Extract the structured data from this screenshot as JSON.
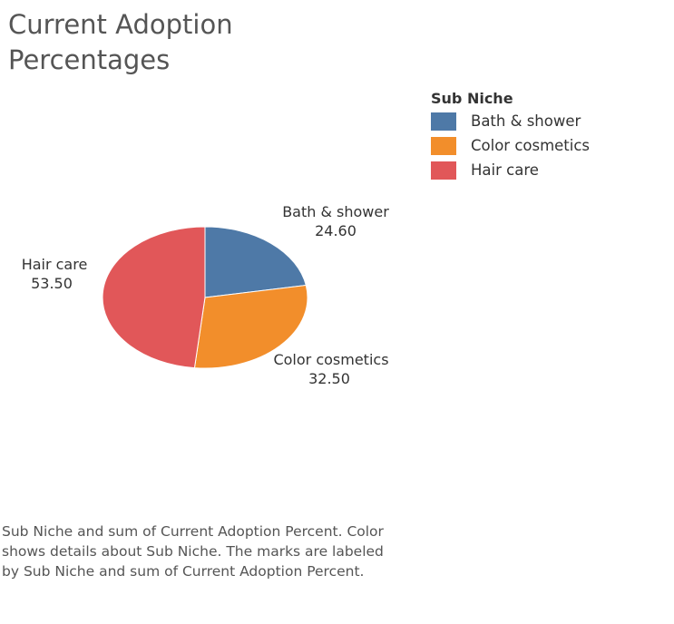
{
  "chart_data": {
    "type": "pie",
    "title": "Current Adoption Percentages",
    "legend": {
      "title": "Sub Niche",
      "placement": "top-right"
    },
    "slices": [
      {
        "name": "Bath & shower",
        "value": 24.6,
        "label_value": "24.60",
        "color": "#4e79a7"
      },
      {
        "name": "Color cosmetics",
        "value": 32.5,
        "label_value": "32.50",
        "color": "#f28e2b"
      },
      {
        "name": "Hair care",
        "value": 53.5,
        "label_value": "53.50",
        "color": "#e15759"
      }
    ]
  },
  "caption": "Sub Niche and sum of Current Adoption Percent.  Color shows details about Sub Niche.  The marks are labeled by Sub Niche and sum of Current Adoption Percent."
}
